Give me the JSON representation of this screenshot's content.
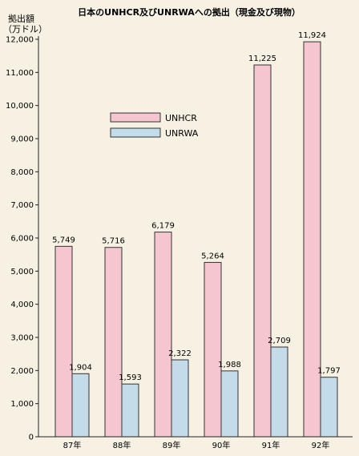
{
  "chart_data": {
    "type": "bar",
    "title": "日本のUNHCR及びUNRWAへの拠出（現金及び現物）",
    "ylabel": "拠出額",
    "yunit": "（万ドル）",
    "categories": [
      "87年",
      "88年",
      "89年",
      "90年",
      "91年",
      "92年"
    ],
    "series": [
      {
        "name": "UNHCR",
        "values": [
          5749,
          5716,
          6179,
          5264,
          11225,
          11924
        ],
        "labels": [
          "5,749",
          "5,716",
          "6,179",
          "5,264",
          "11,225",
          "11,924"
        ],
        "color": "#f5c6cf"
      },
      {
        "name": "UNRWA",
        "values": [
          1904,
          1593,
          2322,
          1988,
          2709,
          1797
        ],
        "labels": [
          "1,904",
          "1,593",
          "2,322",
          "1,988",
          "2,709",
          "1,797"
        ],
        "color": "#c4dcea"
      }
    ],
    "ylim": [
      0,
      12000
    ],
    "yticks": [
      0,
      1000,
      2000,
      3000,
      4000,
      5000,
      6000,
      7000,
      8000,
      9000,
      10000,
      11000,
      12000
    ],
    "ytick_labels": [
      "0",
      "1,000",
      "2,000",
      "3,000",
      "4,000",
      "5,000",
      "6,000",
      "7,000",
      "8,000",
      "9,000",
      "10,000",
      "11,000",
      "12,000"
    ],
    "grid": false,
    "legend_position": "upper-left"
  }
}
